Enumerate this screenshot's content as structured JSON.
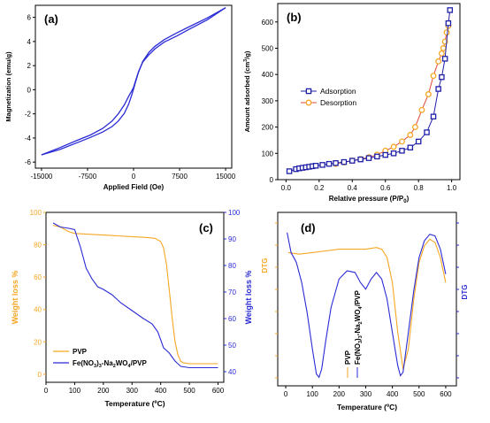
{
  "chart_data": [
    {
      "panel_label": "(a)",
      "type": "line",
      "xlabel": "Applied Field (Oe)",
      "ylabel": "Magnetization (emu/g)",
      "xlim": [
        -16000,
        16000
      ],
      "ylim": [
        -6.5,
        7
      ],
      "xticks": [
        -15000,
        -7500,
        0,
        7500,
        15000
      ],
      "xtick_labels": [
        "-15000",
        "-7500",
        "0",
        "7500",
        "15000"
      ],
      "yticks": [
        -6,
        -4,
        -2,
        0,
        2,
        4,
        6
      ],
      "ytick_labels": [
        "-6",
        "-4",
        "-2",
        "0",
        "2",
        "4",
        "6"
      ],
      "color": "#2b2bd6",
      "series": [
        {
          "x": [
            -15000,
            -12000,
            -9000,
            -7000,
            -5000,
            -3500,
            -2500,
            -1500,
            -800,
            -300,
            0,
            300,
            800,
            1500,
            2500,
            3500,
            5000,
            7000,
            9000,
            12000,
            15000
          ],
          "y": [
            -5.4,
            -4.8,
            -4.15,
            -3.75,
            -3.2,
            -2.6,
            -2.0,
            -1.25,
            -0.55,
            -0.1,
            0.2,
            0.7,
            1.5,
            2.3,
            2.9,
            3.4,
            3.95,
            4.45,
            5.0,
            5.8,
            6.8
          ]
        },
        {
          "x": [
            15000,
            12000,
            9000,
            7000,
            5000,
            3500,
            2500,
            1500,
            800,
            300,
            0,
            -300,
            -800,
            -1500,
            -2500,
            -3500,
            -5000,
            -7000,
            -9000,
            -12000,
            -15000
          ],
          "y": [
            6.8,
            5.95,
            5.2,
            4.7,
            4.15,
            3.6,
            3.1,
            2.35,
            1.45,
            0.6,
            0.05,
            -0.45,
            -1.2,
            -1.95,
            -2.6,
            -3.05,
            -3.5,
            -3.95,
            -4.35,
            -4.95,
            -5.4
          ]
        }
      ]
    },
    {
      "panel_label": "(b)",
      "type": "line",
      "xlabel": "Relative pressure (P/P",
      "xlabel_sub": "0",
      "xlabel_end": ")",
      "ylabel": "Amount adsorbed (cm",
      "ylabel_sup": "3",
      "ylabel_end": "/g)",
      "xlim": [
        -0.05,
        1.05
      ],
      "ylim": [
        0,
        670
      ],
      "xticks": [
        0.0,
        0.2,
        0.4,
        0.6,
        0.8,
        1.0
      ],
      "xtick_labels": [
        "0.0",
        "0.2",
        "0.4",
        "0.6",
        "0.8",
        "1.0"
      ],
      "yticks": [
        0,
        100,
        200,
        300,
        400,
        500,
        600
      ],
      "ytick_labels": [
        "0",
        "100",
        "200",
        "300",
        "400",
        "500",
        "600"
      ],
      "legend_position": "middle-left",
      "series": [
        {
          "name": "Adsorption",
          "color": "#1f1fa8",
          "marker": "square",
          "x": [
            0.02,
            0.06,
            0.08,
            0.1,
            0.12,
            0.14,
            0.16,
            0.18,
            0.22,
            0.26,
            0.3,
            0.35,
            0.4,
            0.45,
            0.5,
            0.55,
            0.6,
            0.65,
            0.7,
            0.75,
            0.8,
            0.85,
            0.89,
            0.92,
            0.94,
            0.96,
            0.98,
            0.99
          ],
          "y": [
            32,
            40,
            43,
            45,
            47,
            49,
            51,
            53,
            56,
            60,
            63,
            67,
            72,
            77,
            82,
            88,
            94,
            100,
            110,
            122,
            145,
            180,
            240,
            345,
            390,
            460,
            595,
            645
          ]
        },
        {
          "name": "Desorption",
          "color": "#f5a623",
          "marker": "circle",
          "x": [
            0.3,
            0.35,
            0.4,
            0.45,
            0.5,
            0.55,
            0.6,
            0.65,
            0.7,
            0.75,
            0.78,
            0.82,
            0.86,
            0.89,
            0.92,
            0.94,
            0.95,
            0.96,
            0.97,
            0.98
          ],
          "y": [
            60,
            66,
            72,
            78,
            85,
            95,
            110,
            125,
            145,
            170,
            200,
            265,
            325,
            395,
            450,
            480,
            500,
            525,
            560,
            585
          ]
        }
      ]
    },
    {
      "panel_label": "(c)",
      "type": "line",
      "xlabel": "Temperature (ºC)",
      "ylabel_left": "Weight loss %",
      "ylabel_right": "Weight loss %",
      "xlim": [
        0,
        620
      ],
      "ylim_left": [
        -5,
        100
      ],
      "ylim_right": [
        36,
        100
      ],
      "xticks": [
        0,
        100,
        200,
        300,
        400,
        500,
        600
      ],
      "xtick_labels": [
        "0",
        "100",
        "200",
        "300",
        "400",
        "500",
        "600"
      ],
      "yticks_left": [
        0,
        20,
        40,
        60,
        80,
        100
      ],
      "ytick_labels_left": [
        "0",
        "20",
        "40",
        "60",
        "80",
        "100"
      ],
      "yticks_right": [
        40,
        50,
        60,
        70,
        80,
        90,
        100
      ],
      "ytick_labels_right": [
        "40",
        "50",
        "60",
        "70",
        "80",
        "90",
        "100"
      ],
      "legend_position": "bottom-left",
      "series": [
        {
          "name": "PVP",
          "color": "#f5a623",
          "axis": "left",
          "x": [
            25,
            50,
            80,
            100,
            150,
            200,
            250,
            300,
            350,
            380,
            400,
            410,
            420,
            430,
            440,
            450,
            460,
            470,
            480,
            500,
            550,
            600
          ],
          "y": [
            92,
            91,
            88,
            87,
            86.5,
            86,
            85.5,
            85,
            84.5,
            84,
            82,
            78,
            68,
            52,
            35,
            20,
            12,
            8,
            7,
            6.5,
            6.5,
            6.5
          ]
        },
        {
          "name": "Fe(NO",
          "name_sub1": "3",
          "name_mid": ")",
          "name_sub2": "3",
          "name_mid2": "-Na",
          "name_sub3": "2",
          "name_mid3": "WO",
          "name_sub4": "4",
          "name_end": "/PVP",
          "color": "#2b2bd6",
          "axis": "right",
          "x": [
            25,
            50,
            80,
            100,
            120,
            140,
            160,
            180,
            200,
            230,
            260,
            300,
            340,
            370,
            390,
            400,
            410,
            420,
            430,
            440,
            450,
            460,
            470,
            500,
            550,
            600
          ],
          "y": [
            96,
            94.5,
            94,
            93.5,
            87,
            79,
            75,
            72,
            71,
            69,
            66,
            63,
            60,
            58,
            55,
            52,
            49,
            48,
            47,
            45.5,
            44,
            43,
            42,
            41.5,
            41.5,
            41.5
          ]
        }
      ]
    },
    {
      "panel_label": "(d)",
      "type": "line",
      "xlabel": "Temperature (ºC)",
      "ylabel_left": "DTG",
      "ylabel_right": "DTG",
      "xlim": [
        -30,
        640
      ],
      "ylim": [
        0,
        1
      ],
      "xticks": [
        0,
        100,
        200,
        300,
        400,
        500,
        600
      ],
      "xtick_labels": [
        "0",
        "100",
        "200",
        "300",
        "400",
        "500",
        "600"
      ],
      "annotations": [
        "PVP",
        "Fe(NO3)3-Na2WO4/PVP"
      ],
      "series": [
        {
          "name": "PVP",
          "color": "#f5a623",
          "x": [
            10,
            50,
            100,
            150,
            200,
            250,
            300,
            340,
            360,
            380,
            400,
            420,
            440,
            460,
            480,
            500,
            520,
            540,
            560,
            580,
            600
          ],
          "y": [
            0.78,
            0.77,
            0.78,
            0.79,
            0.8,
            0.8,
            0.8,
            0.81,
            0.8,
            0.75,
            0.6,
            0.3,
            0.08,
            0.2,
            0.5,
            0.72,
            0.82,
            0.86,
            0.84,
            0.75,
            0.6
          ]
        },
        {
          "name": "Fe(NO3)3-Na2WO4/PVP",
          "color": "#2b2bd6",
          "x": [
            5,
            20,
            40,
            60,
            80,
            100,
            115,
            125,
            135,
            150,
            170,
            200,
            230,
            260,
            280,
            300,
            320,
            340,
            360,
            380,
            400,
            420,
            430,
            440,
            460,
            480,
            500,
            520,
            540,
            560,
            580,
            600
          ],
          "y": [
            0.9,
            0.78,
            0.72,
            0.6,
            0.42,
            0.2,
            0.05,
            0.03,
            0.08,
            0.25,
            0.45,
            0.62,
            0.67,
            0.66,
            0.6,
            0.56,
            0.62,
            0.66,
            0.62,
            0.5,
            0.3,
            0.1,
            0.04,
            0.06,
            0.3,
            0.55,
            0.75,
            0.85,
            0.89,
            0.88,
            0.8,
            0.65
          ]
        }
      ]
    }
  ]
}
